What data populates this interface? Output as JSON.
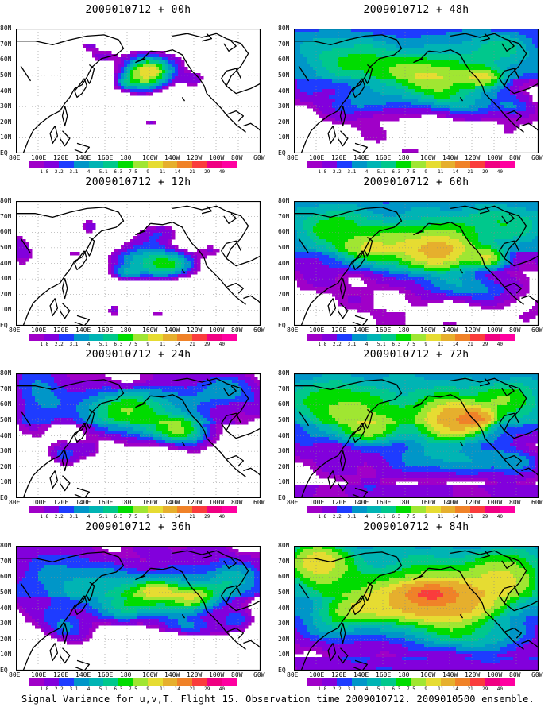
{
  "footer": "Signal Variance for u,v,T. Flight 15. Observation time 2009010712. 2009010500 ensemble.",
  "lat_labels": [
    "80N",
    "70N",
    "60N",
    "50N",
    "40N",
    "30N",
    "20N",
    "10N",
    "EQ"
  ],
  "lon_labels": [
    "80E",
    "100E",
    "120E",
    "140E",
    "160E",
    "180",
    "160W",
    "140W",
    "120W",
    "100W",
    "80W",
    "60W"
  ],
  "colorbar": {
    "labels": [
      "1.8",
      "2.2",
      "3.1",
      "4",
      "5.1",
      "6.3",
      "7.5",
      "9",
      "11",
      "14",
      "21",
      "29",
      "40"
    ],
    "colors": [
      "#a000c8",
      "#8200dc",
      "#1e3cff",
      "#0096c8",
      "#00b4b4",
      "#00c88c",
      "#00dc00",
      "#a0e632",
      "#e6dc32",
      "#e6af2d",
      "#f08228",
      "#fa3c3c",
      "#f00082",
      "#ff00a0"
    ]
  },
  "panels": [
    {
      "title": "2009010712 + 00h",
      "level": 0
    },
    {
      "title": "2009010712 + 48h",
      "level": 4
    },
    {
      "title": "2009010712 + 12h",
      "level": 1
    },
    {
      "title": "2009010712 + 60h",
      "level": 5
    },
    {
      "title": "2009010712 + 24h",
      "level": 2
    },
    {
      "title": "2009010712 + 72h",
      "level": 6
    },
    {
      "title": "2009010712 + 36h",
      "level": 3
    },
    {
      "title": "2009010712 + 84h",
      "level": 7
    }
  ]
}
